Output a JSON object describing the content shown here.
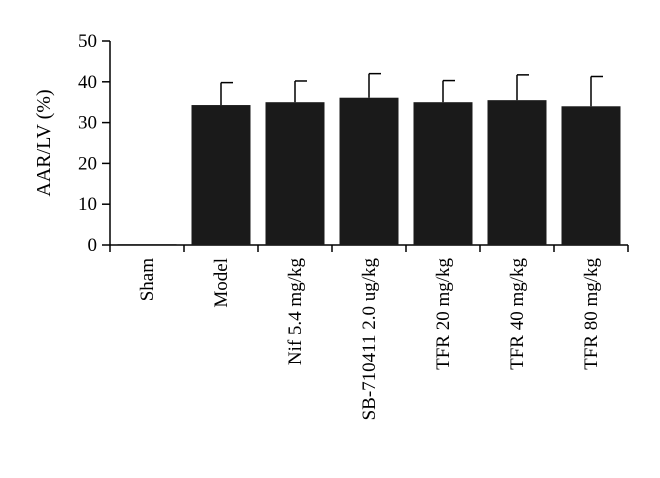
{
  "chart_data": {
    "type": "bar",
    "ylabel": "AAR/LV (%)",
    "ylim": [
      0,
      50
    ],
    "yticks": [
      0,
      10,
      20,
      30,
      40,
      50
    ],
    "categories": [
      "Sham",
      "Model",
      "Nif 5.4 mg/kg",
      "SB-710411 2.0 ug/kg",
      "TFR 20 mg/kg",
      "TFR 40 mg/kg",
      "TFR 80 mg/kg"
    ],
    "values": [
      0.2,
      34.3,
      35.0,
      36.1,
      35.0,
      35.5,
      34.0
    ],
    "error_upper": [
      0,
      5.5,
      5.2,
      5.9,
      5.3,
      6.2,
      7.3
    ],
    "grid": false,
    "legend": "none",
    "bar_color": "#1a1a1a"
  }
}
